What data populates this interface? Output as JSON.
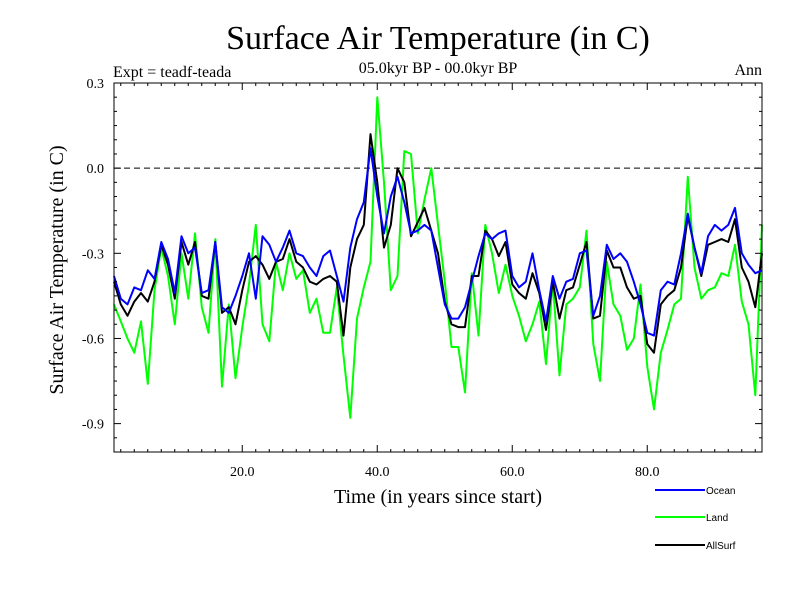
{
  "chart_data": {
    "type": "line",
    "title": "Surface Air Temperature (in C)",
    "subtitle": "05.0kyr BP - 00.0kyr BP",
    "left_label": "Expt = teadf-teada",
    "right_label": "Ann",
    "xlabel": "Time (in years since start)",
    "ylabel": "Surface Air Temperature (in C)",
    "xlim": [
      1,
      97
    ],
    "ylim": [
      -1.0,
      0.3
    ],
    "xticks": [
      20,
      40,
      60,
      80
    ],
    "xtick_labels": [
      "20.0",
      "40.0",
      "60.0",
      "80.0"
    ],
    "yticks": [
      0.3,
      0.0,
      -0.3,
      -0.6,
      -0.9
    ],
    "ytick_labels": [
      "0.3",
      "0.0",
      "-0.3",
      "-0.6",
      "-0.9"
    ],
    "reference_line": 0.0,
    "legend_position": "bottom-right",
    "x": [
      1,
      2,
      3,
      4,
      5,
      6,
      7,
      8,
      9,
      10,
      11,
      12,
      13,
      14,
      15,
      16,
      17,
      18,
      19,
      20,
      21,
      22,
      23,
      24,
      25,
      26,
      27,
      28,
      29,
      30,
      31,
      32,
      33,
      34,
      35,
      36,
      37,
      38,
      39,
      40,
      41,
      42,
      43,
      44,
      45,
      46,
      47,
      48,
      49,
      50,
      51,
      52,
      53,
      54,
      55,
      56,
      57,
      58,
      59,
      60,
      61,
      62,
      63,
      64,
      65,
      66,
      67,
      68,
      69,
      70,
      71,
      72,
      73,
      74,
      75,
      76,
      77,
      78,
      79,
      80,
      81,
      82,
      83,
      84,
      85,
      86,
      87,
      88,
      89,
      90,
      91,
      92,
      93,
      94,
      95,
      96,
      97
    ],
    "series": [
      {
        "name": "Ocean",
        "color": "#0000ff",
        "values": [
          -0.38,
          -0.46,
          -0.48,
          -0.42,
          -0.43,
          -0.36,
          -0.39,
          -0.26,
          -0.32,
          -0.44,
          -0.24,
          -0.3,
          -0.28,
          -0.44,
          -0.43,
          -0.26,
          -0.49,
          -0.51,
          -0.45,
          -0.38,
          -0.3,
          -0.46,
          -0.24,
          -0.27,
          -0.33,
          -0.28,
          -0.22,
          -0.3,
          -0.31,
          -0.35,
          -0.38,
          -0.31,
          -0.29,
          -0.38,
          -0.47,
          -0.28,
          -0.18,
          -0.12,
          0.07,
          -0.1,
          -0.23,
          -0.1,
          -0.03,
          -0.12,
          -0.23,
          -0.22,
          -0.2,
          -0.22,
          -0.35,
          -0.48,
          -0.53,
          -0.53,
          -0.49,
          -0.4,
          -0.31,
          -0.23,
          -0.25,
          -0.23,
          -0.22,
          -0.38,
          -0.42,
          -0.4,
          -0.3,
          -0.43,
          -0.54,
          -0.38,
          -0.46,
          -0.4,
          -0.39,
          -0.3,
          -0.29,
          -0.52,
          -0.45,
          -0.27,
          -0.32,
          -0.3,
          -0.33,
          -0.4,
          -0.48,
          -0.58,
          -0.59,
          -0.43,
          -0.4,
          -0.41,
          -0.3,
          -0.16,
          -0.28,
          -0.37,
          -0.24,
          -0.2,
          -0.22,
          -0.2,
          -0.14,
          -0.3,
          -0.34,
          -0.37,
          -0.36
        ]
      },
      {
        "name": "Land",
        "color": "#00ff00",
        "values": [
          -0.48,
          -0.54,
          -0.6,
          -0.65,
          -0.54,
          -0.76,
          -0.43,
          -0.28,
          -0.38,
          -0.55,
          -0.3,
          -0.46,
          -0.23,
          -0.49,
          -0.58,
          -0.25,
          -0.77,
          -0.48,
          -0.74,
          -0.56,
          -0.41,
          -0.2,
          -0.55,
          -0.61,
          -0.33,
          -0.43,
          -0.3,
          -0.39,
          -0.36,
          -0.51,
          -0.46,
          -0.58,
          -0.58,
          -0.42,
          -0.66,
          -0.88,
          -0.53,
          -0.42,
          -0.33,
          0.25,
          -0.05,
          -0.43,
          -0.38,
          0.06,
          0.05,
          -0.23,
          -0.11,
          0.0,
          -0.2,
          -0.4,
          -0.63,
          -0.63,
          -0.79,
          -0.37,
          -0.59,
          -0.2,
          -0.3,
          -0.44,
          -0.34,
          -0.45,
          -0.52,
          -0.61,
          -0.55,
          -0.47,
          -0.69,
          -0.4,
          -0.73,
          -0.48,
          -0.46,
          -0.42,
          -0.22,
          -0.62,
          -0.75,
          -0.33,
          -0.48,
          -0.52,
          -0.64,
          -0.6,
          -0.41,
          -0.7,
          -0.85,
          -0.65,
          -0.57,
          -0.48,
          -0.46,
          -0.03,
          -0.35,
          -0.46,
          -0.43,
          -0.42,
          -0.37,
          -0.38,
          -0.27,
          -0.47,
          -0.55,
          -0.8,
          -0.2
        ]
      },
      {
        "name": "AllSurf",
        "color": "#000000",
        "values": [
          -0.4,
          -0.48,
          -0.52,
          -0.47,
          -0.44,
          -0.47,
          -0.4,
          -0.27,
          -0.34,
          -0.46,
          -0.26,
          -0.34,
          -0.26,
          -0.45,
          -0.46,
          -0.26,
          -0.51,
          -0.49,
          -0.55,
          -0.43,
          -0.33,
          -0.31,
          -0.34,
          -0.39,
          -0.33,
          -0.32,
          -0.25,
          -0.33,
          -0.35,
          -0.4,
          -0.41,
          -0.39,
          -0.38,
          -0.4,
          -0.59,
          -0.35,
          -0.25,
          -0.2,
          0.12,
          -0.05,
          -0.28,
          -0.2,
          0.0,
          -0.05,
          -0.24,
          -0.19,
          -0.14,
          -0.22,
          -0.3,
          -0.47,
          -0.55,
          -0.56,
          -0.56,
          -0.38,
          -0.38,
          -0.22,
          -0.25,
          -0.31,
          -0.26,
          -0.41,
          -0.44,
          -0.46,
          -0.37,
          -0.44,
          -0.57,
          -0.4,
          -0.53,
          -0.43,
          -0.42,
          -0.34,
          -0.26,
          -0.53,
          -0.52,
          -0.29,
          -0.35,
          -0.35,
          -0.42,
          -0.46,
          -0.45,
          -0.62,
          -0.65,
          -0.48,
          -0.45,
          -0.43,
          -0.35,
          -0.17,
          -0.28,
          -0.38,
          -0.27,
          -0.26,
          -0.25,
          -0.26,
          -0.18,
          -0.35,
          -0.4,
          -0.49,
          -0.3
        ]
      }
    ]
  }
}
